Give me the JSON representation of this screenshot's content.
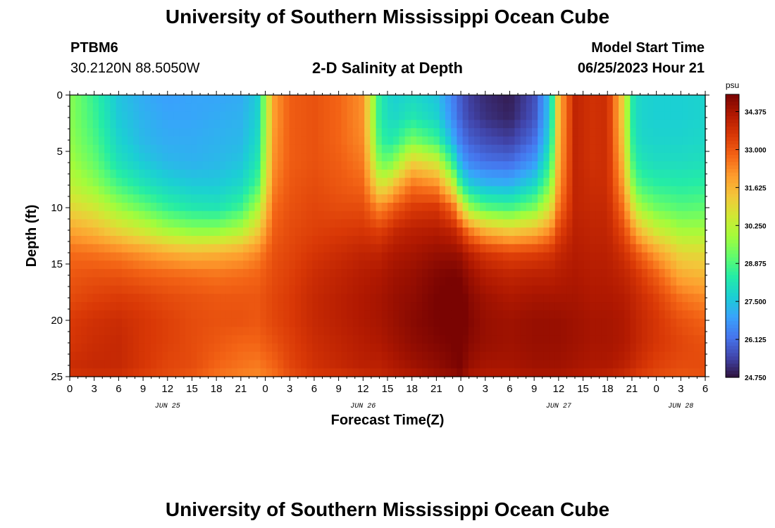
{
  "header": {
    "title": "University of Southern Mississippi Ocean Cube",
    "station_id": "PTBM6",
    "station_coords": "30.2120N  88.5050W",
    "plot_title": "2-D Salinity at Depth",
    "model_start_label": "Model Start Time",
    "model_start_value": "06/25/2023 Hour 21"
  },
  "footer": {
    "title": "University of Southern Mississippi Ocean Cube"
  },
  "chart_data": {
    "type": "heatmap",
    "title": "2-D Salinity at Depth",
    "xlabel": "Forecast Time(Z)",
    "ylabel": "Depth (ft)",
    "x_range_hours": [
      0,
      78
    ],
    "ylim": [
      0,
      25
    ],
    "x_ticks": [
      {
        "h": 0,
        "label": "0"
      },
      {
        "h": 3,
        "label": "3"
      },
      {
        "h": 6,
        "label": "6"
      },
      {
        "h": 9,
        "label": "9"
      },
      {
        "h": 12,
        "label": "12"
      },
      {
        "h": 15,
        "label": "15"
      },
      {
        "h": 18,
        "label": "18"
      },
      {
        "h": 21,
        "label": "21"
      },
      {
        "h": 24,
        "label": "0"
      },
      {
        "h": 27,
        "label": "3"
      },
      {
        "h": 30,
        "label": "6"
      },
      {
        "h": 33,
        "label": "9"
      },
      {
        "h": 36,
        "label": "12"
      },
      {
        "h": 39,
        "label": "15"
      },
      {
        "h": 42,
        "label": "18"
      },
      {
        "h": 45,
        "label": "21"
      },
      {
        "h": 48,
        "label": "0"
      },
      {
        "h": 51,
        "label": "3"
      },
      {
        "h": 54,
        "label": "6"
      },
      {
        "h": 57,
        "label": "9"
      },
      {
        "h": 60,
        "label": "12"
      },
      {
        "h": 63,
        "label": "15"
      },
      {
        "h": 66,
        "label": "18"
      },
      {
        "h": 69,
        "label": "21"
      },
      {
        "h": 72,
        "label": "0"
      },
      {
        "h": 75,
        "label": "3"
      },
      {
        "h": 78,
        "label": "6"
      }
    ],
    "date_labels": [
      {
        "h": 12,
        "label": "JUN 25"
      },
      {
        "h": 36,
        "label": "JUN 26"
      },
      {
        "h": 60,
        "label": "JUN 27"
      },
      {
        "h": 75,
        "label": "JUN 28"
      }
    ],
    "y_ticks": [
      0,
      5,
      10,
      15,
      20,
      25
    ],
    "colorbar": {
      "unit": "psu",
      "min": 24.75,
      "max": 35.0,
      "labels": [
        "34.375",
        "33.000",
        "31.625",
        "30.250",
        "28.875",
        "27.500",
        "26.125",
        "24.750"
      ],
      "colors": [
        "#30123b",
        "#4145ab",
        "#4675ed",
        "#39a2fc",
        "#1bcfd4",
        "#24eca6",
        "#61fc6c",
        "#a4fc3b",
        "#d1e834",
        "#f3c63a",
        "#fe9b2d",
        "#f36315",
        "#d93806",
        "#b11901",
        "#7a0402"
      ]
    },
    "cross_section": {
      "time_hours": [
        0,
        3,
        6,
        9,
        12,
        15,
        18,
        21,
        23,
        25,
        27,
        30,
        33,
        36,
        38,
        39,
        40,
        42,
        45,
        47,
        48,
        49,
        51,
        54,
        57,
        59,
        60,
        62,
        64,
        66,
        68,
        69,
        70,
        72,
        75,
        78
      ],
      "depth_ft": [
        0,
        2,
        4,
        6,
        8,
        10,
        12,
        14,
        16,
        18,
        20,
        22,
        24,
        25
      ],
      "salinity_psu": [
        [
          29.6,
          29.6,
          29.7,
          29.9,
          30.3,
          31.0,
          31.9,
          32.7,
          33.0,
          33.2,
          33.5,
          33.6,
          33.8,
          33.6
        ],
        [
          28.6,
          28.7,
          28.9,
          29.2,
          29.7,
          30.6,
          31.6,
          32.6,
          33.1,
          33.4,
          33.7,
          33.8,
          33.9,
          33.7
        ],
        [
          27.5,
          27.6,
          27.8,
          28.1,
          28.8,
          29.8,
          31.0,
          32.4,
          33.1,
          33.5,
          33.8,
          33.9,
          33.9,
          33.7
        ],
        [
          27.1,
          27.2,
          27.3,
          27.6,
          28.2,
          29.2,
          30.5,
          32.1,
          32.9,
          33.4,
          33.6,
          33.6,
          33.6,
          33.4
        ],
        [
          26.9,
          27.0,
          27.1,
          27.3,
          27.8,
          28.6,
          29.9,
          31.8,
          32.8,
          33.2,
          33.4,
          33.4,
          33.3,
          33.2
        ],
        [
          27.0,
          27.0,
          27.1,
          27.2,
          27.6,
          28.3,
          29.6,
          31.6,
          32.7,
          33.1,
          33.2,
          33.2,
          33.2,
          33.0
        ],
        [
          27.0,
          27.1,
          27.2,
          27.3,
          27.6,
          28.2,
          29.6,
          31.7,
          32.6,
          33.0,
          33.1,
          33.0,
          32.8,
          32.6
        ],
        [
          27.1,
          27.2,
          27.3,
          27.5,
          27.9,
          28.7,
          30.1,
          31.9,
          32.7,
          33.0,
          33.1,
          32.8,
          32.6,
          32.4
        ],
        [
          27.6,
          27.7,
          27.9,
          28.2,
          28.8,
          29.9,
          31.1,
          32.3,
          32.8,
          33.0,
          33.0,
          32.8,
          32.5,
          32.3
        ],
        [
          32.0,
          32.0,
          32.1,
          32.2,
          32.4,
          32.7,
          32.9,
          33.1,
          33.2,
          33.3,
          33.3,
          33.1,
          32.8,
          32.6
        ],
        [
          32.9,
          32.9,
          32.9,
          32.9,
          33.0,
          33.1,
          33.2,
          33.3,
          33.4,
          33.5,
          33.5,
          33.4,
          33.3,
          33.1
        ],
        [
          33.1,
          33.1,
          33.1,
          33.1,
          33.2,
          33.3,
          33.4,
          33.6,
          33.8,
          33.9,
          33.9,
          33.8,
          33.7,
          33.5
        ],
        [
          32.8,
          32.8,
          32.8,
          32.9,
          33.0,
          33.2,
          33.5,
          33.8,
          34.0,
          34.1,
          34.1,
          34.0,
          33.9,
          33.6
        ],
        [
          32.2,
          32.2,
          32.3,
          32.5,
          32.8,
          33.2,
          33.6,
          34.0,
          34.2,
          34.3,
          34.3,
          34.2,
          34.1,
          33.8
        ],
        [
          28.5,
          28.5,
          28.8,
          29.5,
          30.8,
          32.3,
          33.4,
          34.0,
          34.3,
          34.4,
          34.4,
          34.3,
          34.1,
          33.9
        ],
        [
          27.9,
          28.0,
          28.3,
          29.2,
          30.9,
          32.6,
          33.6,
          34.2,
          34.4,
          34.5,
          34.5,
          34.4,
          34.2,
          34.0
        ],
        [
          27.7,
          27.9,
          28.5,
          29.8,
          31.6,
          33.0,
          33.9,
          34.3,
          34.5,
          34.6,
          34.6,
          34.5,
          34.3,
          34.1
        ],
        [
          27.9,
          28.3,
          29.4,
          31.2,
          32.6,
          33.5,
          34.1,
          34.4,
          34.6,
          34.7,
          34.8,
          34.7,
          34.5,
          34.2
        ],
        [
          27.5,
          27.8,
          28.7,
          30.6,
          32.3,
          33.6,
          34.2,
          34.6,
          34.9,
          35.0,
          35.0,
          34.9,
          34.7,
          34.5
        ],
        [
          26.4,
          26.6,
          27.2,
          28.6,
          30.6,
          32.8,
          34.0,
          34.6,
          35.0,
          35.1,
          35.1,
          35.0,
          34.9,
          34.6
        ],
        [
          25.8,
          25.9,
          26.3,
          27.1,
          28.6,
          31.2,
          33.4,
          34.5,
          34.9,
          35.2,
          35.2,
          35.1,
          35.0,
          34.8
        ],
        [
          25.4,
          25.5,
          25.9,
          26.5,
          27.7,
          29.8,
          32.5,
          34.1,
          34.6,
          34.8,
          34.9,
          34.8,
          34.6,
          34.3
        ],
        [
          25.1,
          25.2,
          25.6,
          26.2,
          27.3,
          29.0,
          31.6,
          33.6,
          34.2,
          34.5,
          34.6,
          34.6,
          34.4,
          34.2
        ],
        [
          24.9,
          25.0,
          25.4,
          26.1,
          27.2,
          28.8,
          31.2,
          33.3,
          34.0,
          34.3,
          34.5,
          34.5,
          34.4,
          34.2
        ],
        [
          25.6,
          25.7,
          26.1,
          26.8,
          27.9,
          29.4,
          31.5,
          33.4,
          34.1,
          34.4,
          34.6,
          34.6,
          34.5,
          34.3
        ],
        [
          27.6,
          27.7,
          28.0,
          28.6,
          29.5,
          30.7,
          32.2,
          33.6,
          34.1,
          34.4,
          34.6,
          34.6,
          34.5,
          34.3
        ],
        [
          31.6,
          31.6,
          31.7,
          31.8,
          32.1,
          32.6,
          33.3,
          33.9,
          34.2,
          34.4,
          34.6,
          34.6,
          34.5,
          34.3
        ],
        [
          34.0,
          34.0,
          34.0,
          34.0,
          34.0,
          34.0,
          34.1,
          34.2,
          34.3,
          34.4,
          34.5,
          34.5,
          34.4,
          34.2
        ],
        [
          33.7,
          33.7,
          33.7,
          33.7,
          33.8,
          33.9,
          34.0,
          34.1,
          34.2,
          34.3,
          34.4,
          34.4,
          34.3,
          34.1
        ],
        [
          33.8,
          33.8,
          33.8,
          33.8,
          33.8,
          33.9,
          34.0,
          34.1,
          34.2,
          34.3,
          34.4,
          34.4,
          34.3,
          34.0
        ],
        [
          31.0,
          31.0,
          31.2,
          31.5,
          32.0,
          32.6,
          33.2,
          33.7,
          34.0,
          34.2,
          34.3,
          34.3,
          34.1,
          33.8
        ],
        [
          28.4,
          28.4,
          28.6,
          29.0,
          29.8,
          31.0,
          32.3,
          33.3,
          33.8,
          34.0,
          34.1,
          34.1,
          33.9,
          33.6
        ],
        [
          27.8,
          27.8,
          27.9,
          28.2,
          28.8,
          29.9,
          31.4,
          32.8,
          33.5,
          33.8,
          33.9,
          33.9,
          33.7,
          33.4
        ],
        [
          27.7,
          27.7,
          27.8,
          28.0,
          28.5,
          29.3,
          30.5,
          32.0,
          32.9,
          33.4,
          33.6,
          33.6,
          33.4,
          33.2
        ],
        [
          27.7,
          27.7,
          27.8,
          28.0,
          28.4,
          29.0,
          29.9,
          31.0,
          31.8,
          32.6,
          33.1,
          33.3,
          33.2,
          33.0
        ],
        [
          27.8,
          27.8,
          27.9,
          28.1,
          28.5,
          29.1,
          29.9,
          30.9,
          31.6,
          32.3,
          32.8,
          33.1,
          33.2,
          33.1
        ]
      ]
    }
  }
}
